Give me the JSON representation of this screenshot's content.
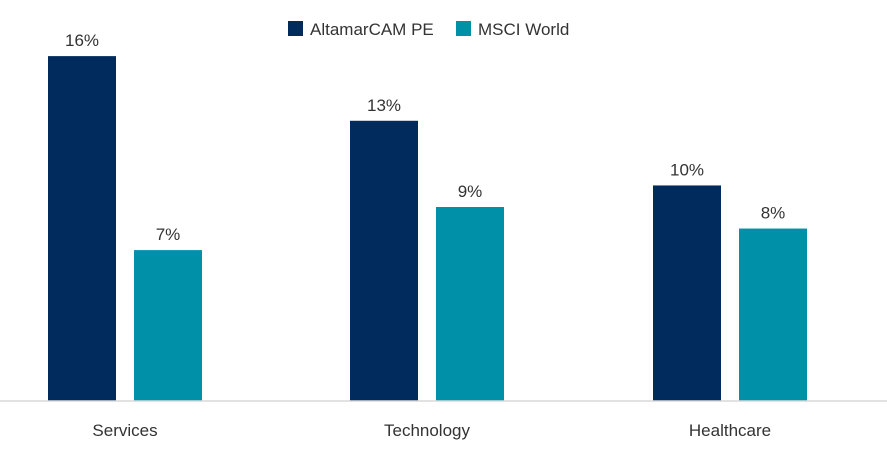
{
  "chart_data": {
    "type": "bar",
    "categories": [
      "Services",
      "Technology",
      "Healthcare"
    ],
    "series": [
      {
        "name": "AltamarCAM PE",
        "values": [
          16,
          13,
          10
        ],
        "labels": [
          "16%",
          "13%",
          "10%"
        ],
        "color": "#002B5C"
      },
      {
        "name": "MSCI World",
        "values": [
          7,
          9,
          8
        ],
        "labels": [
          "7%",
          "9%",
          "8%"
        ],
        "color": "#0090A8"
      }
    ],
    "ylim": [
      0,
      18
    ],
    "grid": false,
    "legend_position": "top-center",
    "axis_color": "#D9D9D9",
    "text_color": "#333333"
  }
}
